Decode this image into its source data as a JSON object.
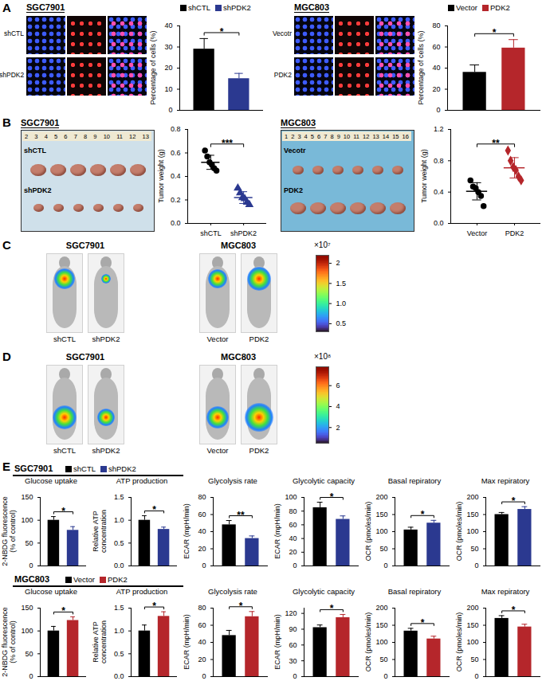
{
  "figure": {
    "A": {
      "label": "A",
      "groups": [
        {
          "header": "SGC7901",
          "image_rows": [
            "shCTL",
            "shPDK2"
          ]
        },
        {
          "header": "MGC803",
          "image_rows": [
            "Vecotr",
            "PDK2"
          ]
        }
      ]
    },
    "B": {
      "label": "B",
      "groups": [
        {
          "header": "SGC7901",
          "ruler": [
            2,
            3,
            4,
            5,
            6,
            7,
            8,
            9,
            10,
            11,
            12,
            13
          ],
          "photo_rows": [
            "shCTL",
            "shPDK2"
          ]
        },
        {
          "header": "MGC803",
          "ruler": [
            1,
            2,
            3,
            4,
            5,
            6,
            7,
            8,
            9,
            10,
            11,
            12,
            13,
            14,
            15,
            16
          ],
          "photo_rows": [
            "Vecotr",
            "PDK2"
          ]
        }
      ]
    },
    "C": {
      "label": "C",
      "groups": [
        {
          "header": "SGC7901",
          "mice": [
            "shCTL",
            "shPDK2"
          ]
        },
        {
          "header": "MGC803",
          "mice": [
            "Vector",
            "PDK2"
          ]
        }
      ],
      "colorbar": {
        "multiplier": "×10⁷",
        "range": [
          0.3,
          2.2
        ],
        "ticks": [
          0.5,
          {
            "value": 1,
            "label": "1.0"
          },
          1.5,
          2
        ]
      }
    },
    "D": {
      "label": "D",
      "groups": [
        {
          "header": "SGC7901",
          "mice": [
            "shCTL",
            "shPDK2"
          ]
        },
        {
          "header": "MGC803",
          "mice": [
            "Vector",
            "PDK2"
          ]
        }
      ],
      "colorbar": {
        "multiplier": "×10⁸",
        "range": [
          0.5,
          7.8
        ],
        "ticks": [
          2,
          4,
          6
        ]
      }
    },
    "E": {
      "label": "E",
      "rows": [
        "SGC7901",
        "MGC803"
      ]
    }
  },
  "chart_data": [
    {
      "type": "bar",
      "ylabel": "Percentage of cells (%)",
      "categories": [
        "shCTL",
        "shPDK2"
      ],
      "values": [
        29,
        15
      ],
      "errors": [
        5,
        2.5
      ],
      "colors": [
        "#000000",
        "#2b3990"
      ],
      "ylim": [
        0,
        40
      ],
      "yticks": [
        0,
        10,
        20,
        30,
        40
      ],
      "annotation": "*"
    },
    {
      "type": "bar",
      "ylabel": "Percentage of cells (%)",
      "categories": [
        "Vector",
        "PDK2"
      ],
      "values": [
        36,
        59
      ],
      "errors": [
        7,
        8
      ],
      "colors": [
        "#000000",
        "#b5262b"
      ],
      "ylim": [
        0,
        80
      ],
      "yticks": [
        0,
        20,
        40,
        60,
        80
      ],
      "annotation": "*"
    },
    {
      "type": "scatter",
      "ylabel": "Tumor weight (g)",
      "series": [
        {
          "name": "shCTL",
          "color": "#000000",
          "marker": "circle",
          "values": [
            0.62,
            0.57,
            0.52,
            0.5,
            0.47,
            0.45
          ],
          "mean": 0.52,
          "sd": 0.06
        },
        {
          "name": "shPDK2",
          "color": "#2b3990",
          "marker": "triangle",
          "values": [
            0.3,
            0.26,
            0.22,
            0.21,
            0.18,
            0.16
          ],
          "mean": 0.22,
          "sd": 0.05
        }
      ],
      "ylim": [
        0,
        0.8
      ],
      "yticks": [
        {
          "value": 0,
          "label": "0.0"
        },
        0.2,
        0.4,
        0.6,
        0.8
      ],
      "annotation": "***"
    },
    {
      "type": "scatter",
      "ylabel": "Tumor weight (g)",
      "series": [
        {
          "name": "Vector",
          "color": "#000000",
          "marker": "circle",
          "values": [
            0.55,
            0.47,
            0.45,
            0.4,
            0.35,
            0.22
          ],
          "mean": 0.41,
          "sd": 0.11
        },
        {
          "name": "PDK2",
          "color": "#b5262b",
          "marker": "diamond",
          "values": [
            0.93,
            0.8,
            0.72,
            0.68,
            0.6,
            0.55
          ],
          "mean": 0.71,
          "sd": 0.13
        }
      ],
      "ylim": [
        0,
        1.2
      ],
      "yticks": [
        {
          "value": 0,
          "label": "0.0"
        },
        0.4,
        0.8,
        1.2
      ],
      "annotation": "**"
    },
    {
      "type": "bar",
      "title": "Glucose uptake",
      "ylabel": "2-NBDG fluorescence\n(% of control)",
      "categories": [
        "shCTL",
        "shPDK2"
      ],
      "values": [
        100,
        78
      ],
      "errors": [
        8,
        8
      ],
      "colors": [
        "#000000",
        "#2b3990"
      ],
      "ylim": [
        0,
        150
      ],
      "yticks": [
        0,
        50,
        100,
        150
      ],
      "annotation": "*"
    },
    {
      "type": "bar",
      "title": "ATP production",
      "ylabel": "Relative ATP\nconcentration",
      "categories": [
        "shCTL",
        "shPDK2"
      ],
      "values": [
        1.0,
        0.8
      ],
      "errors": [
        0.1,
        0.05
      ],
      "colors": [
        "#000000",
        "#2b3990"
      ],
      "ylim": [
        0,
        1.5
      ],
      "yticks": [
        {
          "value": 0,
          "label": "0.0"
        },
        0.5,
        {
          "value": 1,
          "label": "1.0"
        },
        1.5
      ],
      "annotation": "*"
    },
    {
      "type": "bar",
      "title": "Glycolysis rate",
      "ylabel": "ECAR (mpH/min)",
      "categories": [
        "shCTL",
        "shPDK2"
      ],
      "values": [
        48,
        32
      ],
      "errors": [
        5,
        3
      ],
      "colors": [
        "#000000",
        "#2b3990"
      ],
      "ylim": [
        0,
        80
      ],
      "yticks": [
        0,
        20,
        40,
        60,
        80
      ],
      "annotation": "**"
    },
    {
      "type": "bar",
      "title": "Glycolytic capacity",
      "ylabel": "ECAR (mpH/min)",
      "categories": [
        "shCTL",
        "shPDK2"
      ],
      "values": [
        85,
        68
      ],
      "errors": [
        8,
        5
      ],
      "colors": [
        "#000000",
        "#2b3990"
      ],
      "ylim": [
        0,
        100
      ],
      "yticks": [
        0,
        20,
        40,
        60,
        80,
        100
      ],
      "annotation": "*"
    },
    {
      "type": "bar",
      "title": "Basal repiratory",
      "ylabel": "OCR (pmoles/min)",
      "categories": [
        "shCTL",
        "shPDK2"
      ],
      "values": [
        105,
        125
      ],
      "errors": [
        8,
        8
      ],
      "colors": [
        "#000000",
        "#2b3990"
      ],
      "ylim": [
        0,
        200
      ],
      "yticks": [
        0,
        50,
        100,
        150,
        200
      ],
      "annotation": "*"
    },
    {
      "type": "bar",
      "title": "Max repiratory",
      "ylabel": "OCR (pmoles/min)",
      "categories": [
        "shCTL",
        "shPDK2"
      ],
      "values": [
        150,
        165
      ],
      "errors": [
        6,
        8
      ],
      "colors": [
        "#000000",
        "#2b3990"
      ],
      "ylim": [
        0,
        200
      ],
      "yticks": [
        0,
        50,
        100,
        150,
        200
      ],
      "annotation": "*"
    },
    {
      "type": "bar",
      "title": "Glucose uptake",
      "ylabel": "2-NBDG fluorescence\n(% of control)",
      "categories": [
        "Vector",
        "PDK2"
      ],
      "values": [
        100,
        123
      ],
      "errors": [
        10,
        8
      ],
      "colors": [
        "#000000",
        "#b5262b"
      ],
      "ylim": [
        0,
        150
      ],
      "yticks": [
        0,
        50,
        100,
        150
      ],
      "annotation": "*"
    },
    {
      "type": "bar",
      "title": "ATP production",
      "ylabel": "Relative ATP\nconcentration",
      "categories": [
        "Vector",
        "PDK2"
      ],
      "values": [
        1.0,
        1.32
      ],
      "errors": [
        0.13,
        0.1
      ],
      "colors": [
        "#000000",
        "#b5262b"
      ],
      "ylim": [
        0,
        1.5
      ],
      "yticks": [
        {
          "value": 0,
          "label": "0.0"
        },
        0.5,
        {
          "value": 1,
          "label": "1.0"
        },
        1.5
      ],
      "annotation": "*"
    },
    {
      "type": "bar",
      "title": "Glycolysis rate",
      "ylabel": "ECAR (mpH/min)",
      "categories": [
        "Vector",
        "PDK2"
      ],
      "values": [
        48,
        70
      ],
      "errors": [
        6,
        6
      ],
      "colors": [
        "#000000",
        "#b5262b"
      ],
      "ylim": [
        0,
        80
      ],
      "yticks": [
        0,
        20,
        40,
        60,
        80
      ],
      "annotation": "*"
    },
    {
      "type": "bar",
      "title": "Glycolytic capacity",
      "ylabel": "ECAR (mpH/min)",
      "categories": [
        "Vector",
        "PDK2"
      ],
      "values": [
        93,
        112
      ],
      "errors": [
        5,
        6
      ],
      "colors": [
        "#000000",
        "#b5262b"
      ],
      "ylim": [
        0,
        130
      ],
      "yticks": [
        0,
        30,
        60,
        90,
        120
      ],
      "annotation": "*"
    },
    {
      "type": "bar",
      "title": "Basal repiratory",
      "ylabel": "OCR (pmoles/min)",
      "categories": [
        "Vector",
        "PDK2"
      ],
      "values": [
        133,
        110
      ],
      "errors": [
        8,
        8
      ],
      "colors": [
        "#000000",
        "#b5262b"
      ],
      "ylim": [
        0,
        200
      ],
      "yticks": [
        0,
        50,
        100,
        150,
        200
      ],
      "annotation": "*"
    },
    {
      "type": "bar",
      "title": "Max repiratory",
      "ylabel": "OCR (pmoles/min)",
      "categories": [
        "Vector",
        "PDK2"
      ],
      "values": [
        170,
        145
      ],
      "errors": [
        8,
        8
      ],
      "colors": [
        "#000000",
        "#b5262b"
      ],
      "ylim": [
        0,
        200
      ],
      "yticks": [
        0,
        50,
        100,
        150,
        200
      ],
      "annotation": "*"
    }
  ]
}
